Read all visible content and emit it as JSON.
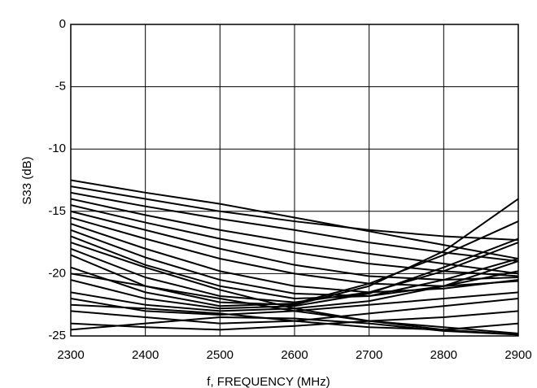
{
  "chart_data": {
    "type": "line",
    "ylabel": "S33 (dB)",
    "xlabel": "f, FREQUENCY (MHz)",
    "x": [
      2300,
      2400,
      2500,
      2600,
      2700,
      2800,
      2900
    ],
    "xlim": [
      2300,
      2900
    ],
    "xticks": [
      2300,
      2400,
      2500,
      2600,
      2700,
      2800,
      2900
    ],
    "ylim": [
      -25,
      0
    ],
    "yticks": [
      0,
      -5,
      -10,
      -15,
      -20,
      -25
    ],
    "grid": true,
    "color": "#000000",
    "series": [
      {
        "values": [
          -12.5,
          -13.5,
          -14.4,
          -15.5,
          -16.6,
          -17.7,
          -18.8
        ]
      },
      {
        "values": [
          -13,
          -14,
          -15,
          -15.8,
          -16.5,
          -17,
          -17.3
        ]
      },
      {
        "values": [
          -13.5,
          -14.6,
          -15.6,
          -16.5,
          -17.5,
          -18.3,
          -19
        ]
      },
      {
        "values": [
          -14,
          -15.3,
          -16.5,
          -17.5,
          -18.4,
          -19.2,
          -20
        ]
      },
      {
        "values": [
          -14.5,
          -15.9,
          -17.2,
          -18.3,
          -19.2,
          -19.8,
          -20.2
        ]
      },
      {
        "values": [
          -15,
          -16.5,
          -18,
          -19.3,
          -20.2,
          -20.5,
          -20.3
        ]
      },
      {
        "values": [
          -15.5,
          -17.2,
          -18.8,
          -20,
          -20.8,
          -21,
          -20.6
        ]
      },
      {
        "values": [
          -16,
          -18,
          -19.8,
          -21,
          -21.5,
          -21.2,
          -20.5
        ]
      },
      {
        "values": [
          -16.5,
          -18.7,
          -20.5,
          -21.6,
          -21.8,
          -21,
          -19.8
        ]
      },
      {
        "values": [
          -17,
          -19.3,
          -21,
          -22,
          -21.8,
          -20.5,
          -18.8
        ]
      },
      {
        "values": [
          -18,
          -20.3,
          -21.8,
          -22.3,
          -21.5,
          -19.8,
          -17.5
        ]
      },
      {
        "values": [
          -18.5,
          -21,
          -22.3,
          -22.5,
          -21,
          -18.2,
          -14
        ]
      },
      {
        "values": [
          -19.5,
          -21.5,
          -22.6,
          -22.4,
          -20.8,
          -18.5,
          -15.8
        ]
      },
      {
        "values": [
          -20.5,
          -22,
          -22.8,
          -22.6,
          -21.6,
          -19.5,
          -17.2
        ]
      },
      {
        "values": [
          -21.5,
          -22.5,
          -23,
          -22.8,
          -22.2,
          -21,
          -19
        ]
      },
      {
        "values": [
          -22,
          -23,
          -23.3,
          -23,
          -22.5,
          -22,
          -21.5
        ]
      },
      {
        "values": [
          -23,
          -23.5,
          -24,
          -23.8,
          -23.2,
          -22.6,
          -22
        ]
      },
      {
        "values": [
          -24,
          -24.3,
          -24.5,
          -24.2,
          -23.8,
          -23.5,
          -23
        ]
      },
      {
        "values": [
          -20,
          -21,
          -22,
          -23,
          -23.8,
          -24.3,
          -24.8
        ]
      },
      {
        "values": [
          -22.5,
          -22.8,
          -23.2,
          -23.8,
          -24.3,
          -24.5,
          -24
        ]
      },
      {
        "values": [
          -24.5,
          -24,
          -23.5,
          -23.6,
          -24,
          -24.6,
          -24.9
        ]
      },
      {
        "values": [
          -17.5,
          -19.5,
          -21.3,
          -22.8,
          -23.8,
          -24.5,
          -24.9
        ]
      }
    ]
  }
}
